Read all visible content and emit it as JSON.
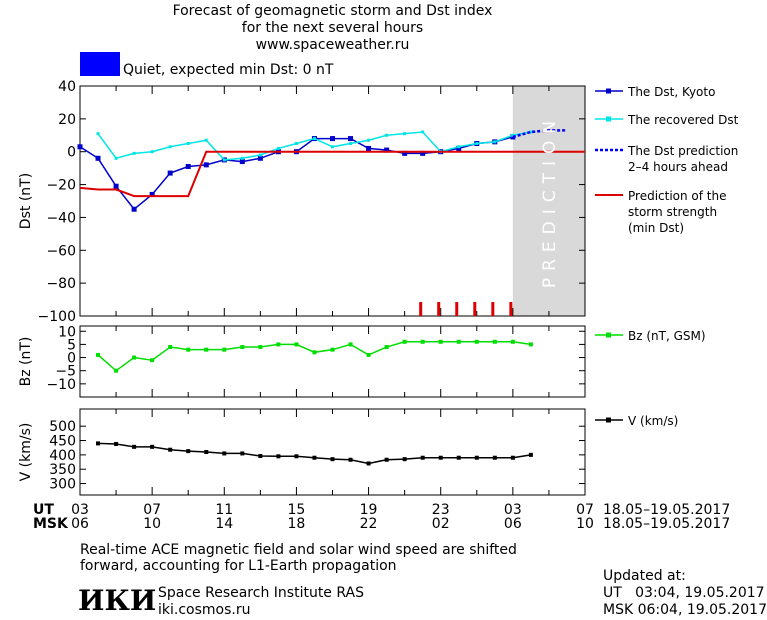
{
  "header": {
    "title_lines": [
      "Forecast of geomagnetic storm and Dst index",
      "for the next several hours",
      "www.spaceweather.ru"
    ],
    "status_color": "#0000ff",
    "status_text": "Quiet, expected min Dst: 0 nT"
  },
  "time_axis": {
    "ut_label": "UT",
    "msk_label": "MSK",
    "ut_ticks": [
      "03",
      "07",
      "11",
      "15",
      "19",
      "23",
      "03",
      "07"
    ],
    "msk_ticks": [
      "06",
      "10",
      "14",
      "18",
      "22",
      "02",
      "06",
      "10"
    ],
    "range_text": "18.05–19.05.2017"
  },
  "prediction_label": "PREDICTION",
  "chart_data": [
    {
      "type": "line",
      "ylabel": "Dst (nT)",
      "ylim": [
        -100,
        40
      ],
      "yticks": [
        40,
        20,
        0,
        -20,
        -40,
        -60,
        -80,
        -100
      ],
      "xlim": [
        0,
        28
      ],
      "prediction_start": 24,
      "series": [
        {
          "name": "The Dst, Kyoto",
          "color": "#0000cc",
          "x": [
            0,
            1,
            2,
            3,
            4,
            5,
            6,
            7,
            8,
            9,
            10,
            11,
            12,
            13,
            14,
            15,
            16,
            17,
            18,
            19,
            20,
            21,
            22,
            23,
            24
          ],
          "y": [
            3,
            -4,
            -21,
            -35,
            -26,
            -13,
            -9,
            -8,
            -5,
            -6,
            -4,
            0,
            0,
            8,
            8,
            8,
            2,
            1,
            -1,
            -1,
            0,
            2,
            5,
            6,
            9
          ]
        },
        {
          "name": "The recovered Dst",
          "color": "#00e5e5",
          "x": [
            1,
            2,
            3,
            4,
            5,
            6,
            7,
            8,
            9,
            10,
            11,
            12,
            13,
            14,
            15,
            16,
            17,
            18,
            19,
            20,
            21,
            22,
            23,
            24,
            25
          ],
          "y": [
            11,
            -4,
            -1,
            0,
            3,
            5,
            7,
            -5,
            -4,
            -2,
            2,
            5,
            8,
            3,
            5,
            7,
            10,
            11,
            12,
            0,
            3,
            5,
            6,
            10,
            12
          ]
        },
        {
          "name": "The Dst prediction\n2–4 hours ahead",
          "color": "#0000ff",
          "x": [
            24,
            25,
            26,
            27
          ],
          "y": [
            9,
            12,
            13,
            13
          ]
        },
        {
          "name": "Prediction of the\nstorm strength\n(min Dst)",
          "color": "#dd0000",
          "x": [
            0,
            1,
            2,
            3,
            4,
            5,
            6,
            7,
            8,
            9,
            10,
            11,
            12,
            13,
            14,
            15,
            16,
            17,
            18,
            19,
            20,
            21,
            22,
            23,
            24,
            25,
            26,
            27,
            28
          ],
          "y": [
            -22,
            -23,
            -23,
            -27,
            -27,
            -27,
            -27,
            0,
            0,
            0,
            0,
            0,
            0,
            0,
            0,
            0,
            0,
            0,
            0,
            0,
            0,
            0,
            0,
            0,
            0,
            0,
            0,
            0,
            0
          ]
        }
      ],
      "markers_x": [
        19,
        20,
        21,
        22,
        23,
        24
      ]
    },
    {
      "type": "line",
      "ylabel": "Bz (nT)",
      "ylim": [
        -15,
        12
      ],
      "yticks": [
        10,
        5,
        0,
        -5,
        -10
      ],
      "series": [
        {
          "name": "Bz (nT, GSM)",
          "color": "#00dd00",
          "x": [
            1,
            2,
            3,
            4,
            5,
            6,
            7,
            8,
            9,
            10,
            11,
            12,
            13,
            14,
            15,
            16,
            17,
            18,
            19,
            20,
            21,
            22,
            23,
            24,
            25
          ],
          "y": [
            1,
            -5,
            0,
            -1,
            4,
            3,
            3,
            3,
            4,
            4,
            5,
            5,
            2,
            3,
            5,
            1,
            4,
            6,
            6,
            6,
            6,
            6,
            6,
            6,
            5
          ]
        }
      ]
    },
    {
      "type": "line",
      "ylabel": "V (km/s)",
      "ylim": [
        260,
        560
      ],
      "yticks": [
        500,
        450,
        400,
        350,
        300
      ],
      "series": [
        {
          "name": "V (km/s)",
          "color": "#000000",
          "x": [
            1,
            2,
            3,
            4,
            5,
            6,
            7,
            8,
            9,
            10,
            11,
            12,
            13,
            14,
            15,
            16,
            17,
            18,
            19,
            20,
            21,
            22,
            23,
            24,
            25
          ],
          "y": [
            440,
            438,
            428,
            428,
            418,
            413,
            410,
            405,
            405,
            396,
            395,
            395,
            390,
            385,
            383,
            370,
            383,
            385,
            390,
            390,
            390,
            390,
            390,
            390,
            400
          ]
        }
      ]
    }
  ],
  "footer": {
    "note_lines": [
      "Real-time ACE magnetic field and solar wind speed are shifted",
      "forward, accounting for L1-Earth propagation"
    ],
    "logo_text": "ИКИ",
    "institute": "Space Research Institute RAS",
    "site": "iki.cosmos.ru",
    "updated_label": "Updated at:",
    "updated_ut": "UT   03:04, 19.05.2017",
    "updated_msk": "MSK 06:04, 19.05.2017"
  }
}
